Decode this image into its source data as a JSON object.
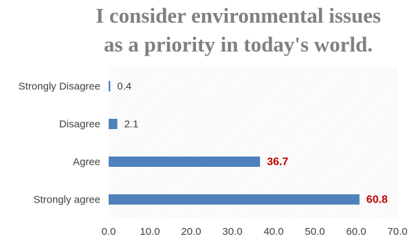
{
  "chart_data": {
    "type": "bar",
    "orientation": "horizontal",
    "title_lines": [
      "I consider environmental issues",
      "as a priority in today's world."
    ],
    "categories": [
      "Strongly Disagree",
      "Disagree",
      "Agree",
      "Strongly agree"
    ],
    "values": [
      0.4,
      2.1,
      36.7,
      60.8
    ],
    "data_labels": [
      "0.4",
      "2.1",
      "36.7",
      "60.8"
    ],
    "xlim": [
      0,
      70
    ],
    "x_ticks": [
      "0.0",
      "10.0",
      "20.0",
      "30.0",
      "40.0",
      "50.0",
      "60.0",
      "70.0"
    ],
    "grid": "diagonal hatch",
    "bar_color": "#4f81bd",
    "highlight_label_color": "#c00000"
  }
}
